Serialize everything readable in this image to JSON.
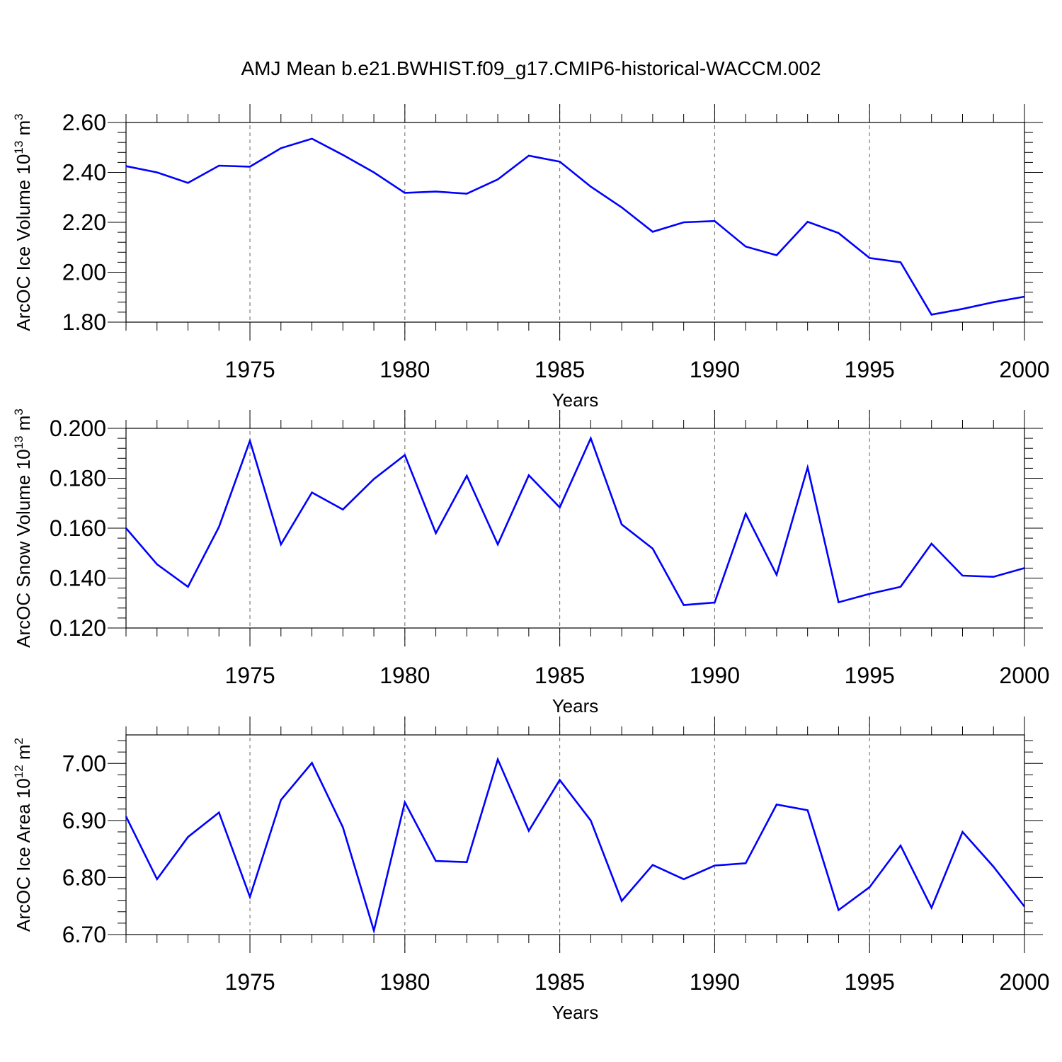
{
  "chart_data": [
    {
      "type": "line",
      "title": "AMJ Mean b.e21.BWHIST.f09_g17.CMIP6-historical-WACCM.002",
      "ylabel": "ArcOC Ice Volume 10",
      "ylabel_exp": "13",
      "ylabel_unit": " m",
      "ylabel_unit_exp": "3",
      "xlabel": "Years",
      "xlim": [
        1971,
        2000
      ],
      "ylim": [
        1.8,
        2.6
      ],
      "yticks": [
        "1.80",
        "2.00",
        "2.20",
        "2.40",
        "2.60"
      ],
      "xticks": [
        "1975",
        "1980",
        "1985",
        "1990",
        "1995",
        "2000"
      ],
      "grid_x": [
        1975,
        1980,
        1985,
        1990,
        1995
      ],
      "line_color": "#0000ff",
      "x": [
        1971,
        1972,
        1973,
        1974,
        1975,
        1976,
        1977,
        1978,
        1979,
        1980,
        1981,
        1982,
        1983,
        1984,
        1985,
        1986,
        1987,
        1988,
        1989,
        1990,
        1991,
        1992,
        1993,
        1994,
        1995,
        1996,
        1997,
        1998,
        1999,
        2000
      ],
      "values": [
        2.425,
        2.4,
        2.358,
        2.427,
        2.423,
        2.497,
        2.535,
        2.47,
        2.4,
        2.318,
        2.323,
        2.315,
        2.372,
        2.467,
        2.443,
        2.343,
        2.26,
        2.162,
        2.2,
        2.205,
        2.103,
        2.068,
        2.202,
        2.157,
        2.057,
        2.04,
        1.83,
        1.853,
        1.88,
        1.902
      ]
    },
    {
      "type": "line",
      "ylabel": "ArcOC Snow Volume 10",
      "ylabel_exp": "13",
      "ylabel_unit": " m",
      "ylabel_unit_exp": "3",
      "xlabel": "Years",
      "xlim": [
        1971,
        2000
      ],
      "ylim": [
        0.12,
        0.2
      ],
      "yticks": [
        "0.120",
        "0.140",
        "0.160",
        "0.180",
        "0.200"
      ],
      "xticks": [
        "1975",
        "1980",
        "1985",
        "1990",
        "1995",
        "2000"
      ],
      "grid_x": [
        1975,
        1980,
        1985,
        1990,
        1995
      ],
      "line_color": "#0000ff",
      "x": [
        1971,
        1972,
        1973,
        1974,
        1975,
        1976,
        1977,
        1978,
        1979,
        1980,
        1981,
        1982,
        1983,
        1984,
        1985,
        1986,
        1987,
        1988,
        1989,
        1990,
        1991,
        1992,
        1993,
        1994,
        1995,
        1996,
        1997,
        1998,
        1999,
        2000
      ],
      "values": [
        0.16,
        0.1455,
        0.1365,
        0.1605,
        0.195,
        0.1535,
        0.1743,
        0.1675,
        0.1797,
        0.1893,
        0.158,
        0.181,
        0.1535,
        0.1812,
        0.1683,
        0.196,
        0.1615,
        0.1518,
        0.1292,
        0.1302,
        0.1658,
        0.1413,
        0.1843,
        0.1303,
        0.1337,
        0.1365,
        0.1538,
        0.141,
        0.1405,
        0.144
      ]
    },
    {
      "type": "line",
      "ylabel": "ArcOC Ice Area 10",
      "ylabel_exp": "12",
      "ylabel_unit": " m",
      "ylabel_unit_exp": "2",
      "xlabel": "Years",
      "xlim": [
        1971,
        2000
      ],
      "ylim": [
        6.7,
        7.05
      ],
      "yticks": [
        "6.70",
        "6.80",
        "6.90",
        "7.00"
      ],
      "xticks": [
        "1975",
        "1980",
        "1985",
        "1990",
        "1995",
        "2000"
      ],
      "grid_x": [
        1975,
        1980,
        1985,
        1990,
        1995
      ],
      "line_color": "#0000ff",
      "x": [
        1971,
        1972,
        1973,
        1974,
        1975,
        1976,
        1977,
        1978,
        1979,
        1980,
        1981,
        1982,
        1983,
        1984,
        1985,
        1986,
        1987,
        1988,
        1989,
        1990,
        1991,
        1992,
        1993,
        1994,
        1995,
        1996,
        1997,
        1998,
        1999,
        2000
      ],
      "values": [
        6.907,
        6.797,
        6.871,
        6.914,
        6.766,
        6.936,
        7.001,
        6.888,
        6.707,
        6.932,
        6.829,
        6.827,
        7.007,
        6.882,
        6.971,
        6.9,
        6.759,
        6.822,
        6.797,
        6.821,
        6.825,
        6.928,
        6.918,
        6.743,
        6.783,
        6.856,
        6.747,
        6.88,
        6.819,
        6.749
      ]
    }
  ]
}
